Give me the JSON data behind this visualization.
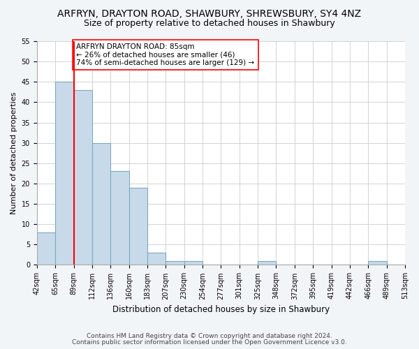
{
  "title": "ARFRYN, DRAYTON ROAD, SHAWBURY, SHREWSBURY, SY4 4NZ",
  "subtitle": "Size of property relative to detached houses in Shawbury",
  "xlabel": "Distribution of detached houses by size in Shawbury",
  "ylabel": "Number of detached properties",
  "bar_values": [
    8,
    45,
    43,
    30,
    23,
    19,
    3,
    1,
    1,
    0,
    0,
    0,
    1,
    0,
    0,
    0,
    0,
    0,
    1,
    0
  ],
  "bin_labels": [
    "42sqm",
    "65sqm",
    "89sqm",
    "112sqm",
    "136sqm",
    "160sqm",
    "183sqm",
    "207sqm",
    "230sqm",
    "254sqm",
    "277sqm",
    "301sqm",
    "325sqm",
    "348sqm",
    "372sqm",
    "395sqm",
    "419sqm",
    "442sqm",
    "466sqm",
    "489sqm",
    "513sqm"
  ],
  "ylim": [
    0,
    55
  ],
  "yticks": [
    0,
    5,
    10,
    15,
    20,
    25,
    30,
    35,
    40,
    45,
    50,
    55
  ],
  "bar_color": "#c8daea",
  "bar_edge_color": "#7aaabe",
  "red_line_x": 2,
  "annotation_text": "ARFRYN DRAYTON ROAD: 85sqm\n← 26% of detached houses are smaller (46)\n74% of semi-detached houses are larger (129) →",
  "footer1": "Contains HM Land Registry data © Crown copyright and database right 2024.",
  "footer2": "Contains public sector information licensed under the Open Government Licence v3.0.",
  "background_color": "#f2f5f8",
  "plot_bg_color": "#ffffff",
  "title_fontsize": 10,
  "subtitle_fontsize": 9,
  "ylabel_fontsize": 8,
  "xlabel_fontsize": 8.5,
  "tick_fontsize": 7,
  "annotation_fontsize": 7.5,
  "footer_fontsize": 6.5
}
